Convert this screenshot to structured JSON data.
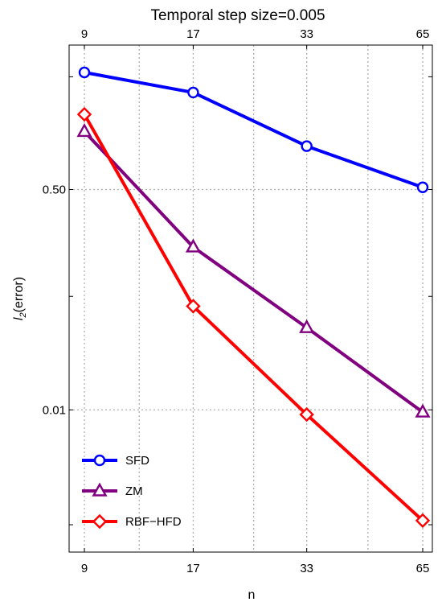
{
  "chart_data": {
    "type": "line",
    "title": "Temporal step size=0.005",
    "xlabel": "n",
    "ylabel_main": "l",
    "ylabel_sub": "2",
    "ylabel_rest": "(error)",
    "x": [
      9,
      17,
      33,
      65
    ],
    "x_tick_labels": [
      "9",
      "17",
      "33",
      "65"
    ],
    "x_scale": "log2",
    "x_grid_extra": [
      12.4,
      24.2,
      47.2
    ],
    "y_scale": "log",
    "ylim": [
      0.0008,
      6.5
    ],
    "y_ticks": [
      0.5,
      0.01
    ],
    "y_tick_labels": [
      "0.50",
      "0.01"
    ],
    "y_minor_ticks": [
      3.7,
      0.075,
      0.0013
    ],
    "grid": true,
    "legend_position": "bottom-left",
    "series": [
      {
        "name": "SFD",
        "color": "#0000ff",
        "marker": "circle",
        "values": [
          4.0,
          2.8,
          1.08,
          0.52
        ]
      },
      {
        "name": "ZM",
        "color": "#800080",
        "marker": "triangle",
        "values": [
          1.4,
          0.18,
          0.043,
          0.0096
        ]
      },
      {
        "name": "RBF−HFD",
        "color": "#ff0000",
        "marker": "diamond",
        "values": [
          1.9,
          0.063,
          0.0092,
          0.0014
        ]
      }
    ]
  }
}
